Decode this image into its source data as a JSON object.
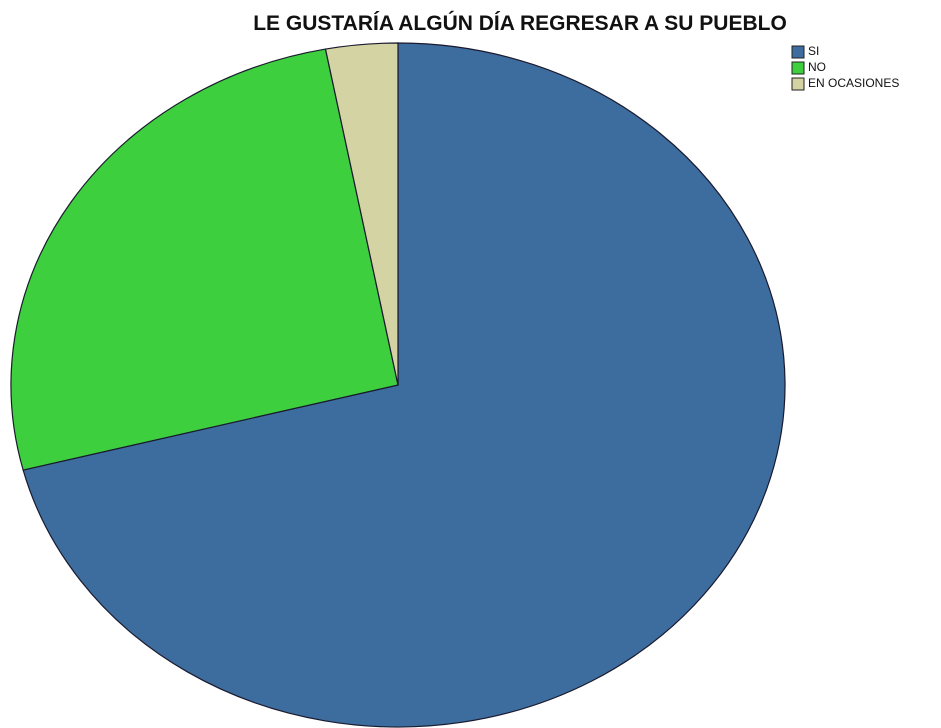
{
  "chart_data": {
    "type": "pie",
    "title": "LE GUSTARÍA ALGÚN DÍA REGRESAR A SU PUEBLO",
    "categories": [
      "SI",
      "NO",
      "EN OCASIONES"
    ],
    "values": [
      71,
      26,
      3
    ],
    "colors": [
      "#3d6c9e",
      "#3ecf3e",
      "#d3d3a3"
    ],
    "legend": "top-right"
  }
}
